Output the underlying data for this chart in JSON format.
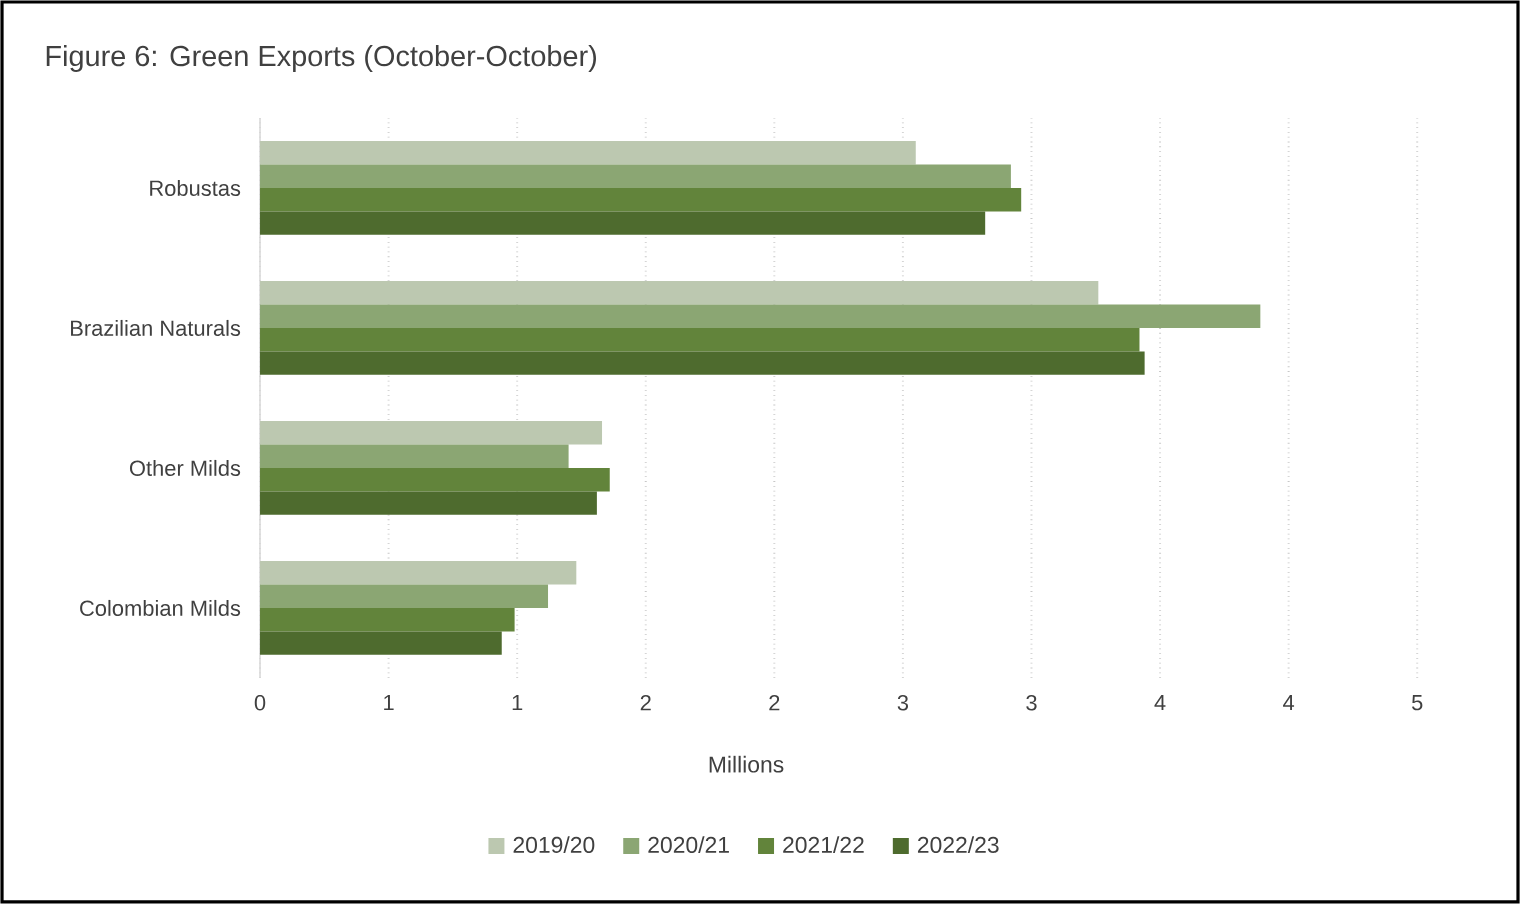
{
  "chart_data": {
    "type": "bar",
    "orientation": "horizontal",
    "title": "Figure 6: Green Exports (October-October)",
    "xlabel": "Millions",
    "categories": [
      "Robustas",
      "Brazilian Naturals",
      "Other Milds",
      "Colombian Milds"
    ],
    "series": [
      {
        "name": "2019/20",
        "color": "#bcc8b0",
        "values": [
          2.55,
          3.26,
          1.33,
          1.23
        ]
      },
      {
        "name": "2020/21",
        "color": "#8ba673",
        "values": [
          2.92,
          3.89,
          1.2,
          1.12
        ]
      },
      {
        "name": "2021/22",
        "color": "#62843b",
        "values": [
          2.96,
          3.42,
          1.36,
          0.99
        ]
      },
      {
        "name": "2022/23",
        "color": "#4e6b2e",
        "values": [
          2.82,
          3.44,
          1.31,
          0.94
        ]
      }
    ],
    "xlim": [
      0,
      4.5
    ],
    "xticks": [
      0,
      {
        "value": 0.5,
        "label": "1"
      },
      1,
      {
        "value": 1.5,
        "label": "2"
      },
      2,
      {
        "value": 2.5,
        "label": "3"
      },
      3,
      {
        "value": 3.5,
        "label": "4"
      },
      4,
      {
        "value": 4.5,
        "label": "5"
      }
    ],
    "grid": "x",
    "legend": "bottom"
  }
}
